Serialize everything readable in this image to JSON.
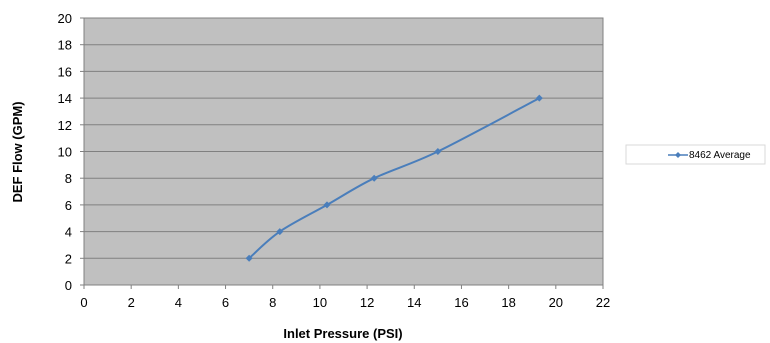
{
  "chart_data": {
    "type": "line",
    "title": "",
    "xlabel": "Inlet Pressure (PSI)",
    "ylabel": "DEF Flow (GPM)",
    "xlim": [
      0,
      22
    ],
    "ylim": [
      0,
      20
    ],
    "x_ticks": [
      "0",
      "2",
      "4",
      "6",
      "8",
      "10",
      "12",
      "14",
      "16",
      "18",
      "20",
      "22"
    ],
    "y_ticks": [
      "0",
      "2",
      "4",
      "6",
      "8",
      "10",
      "12",
      "14",
      "16",
      "18",
      "20"
    ],
    "grid": "horizontal",
    "plot_background": "#c0c0c0",
    "legend_position": "right",
    "series": [
      {
        "name": "8462 Average",
        "color": "#4a7ebb",
        "marker": "diamond",
        "smooth": true,
        "x": [
          7.0,
          8.3,
          10.3,
          12.3,
          15.0,
          19.3
        ],
        "y": [
          2,
          4,
          6,
          8,
          10,
          14
        ]
      }
    ]
  }
}
